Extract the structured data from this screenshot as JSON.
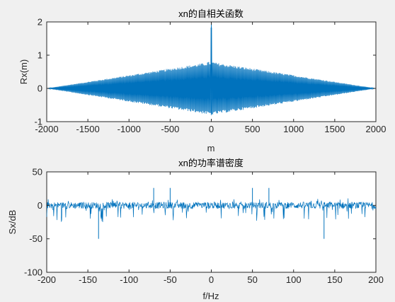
{
  "colors": {
    "figure_bg": "#f0f0f0",
    "axes_bg": "#ffffff",
    "axis_color": "#262626",
    "line": "#0072bd"
  },
  "chart_data": [
    {
      "type": "line",
      "title": "xn的自相关函数",
      "xlabel": "m",
      "ylabel": "Rx(m)",
      "xlim": [
        -2000,
        2000
      ],
      "ylim": [
        -1,
        2
      ],
      "xticks": [
        -2000,
        -1500,
        -1000,
        -500,
        0,
        500,
        1000,
        1500,
        2000
      ],
      "yticks": [
        -1,
        0,
        1,
        2
      ],
      "grid": false,
      "series": [
        {
          "description": "oscillating autocorrelation with triangular envelope",
          "x": [
            -2000,
            -1500,
            -1000,
            -500,
            -50,
            0,
            50,
            500,
            1000,
            1500,
            2000
          ],
          "envelope_upper": [
            0.0,
            0.2,
            0.4,
            0.6,
            0.78,
            2.0,
            0.78,
            0.6,
            0.4,
            0.2,
            0.0
          ],
          "envelope_lower": [
            0.0,
            -0.2,
            -0.4,
            -0.6,
            -0.78,
            -0.8,
            -0.78,
            -0.6,
            -0.4,
            -0.2,
            0.0
          ]
        }
      ]
    },
    {
      "type": "line",
      "title": "xn的功率谱密度",
      "xlabel": "f/Hz",
      "ylabel": "Sx/dB",
      "xlim": [
        -200,
        200
      ],
      "ylim": [
        -100,
        50
      ],
      "xticks": [
        -200,
        -150,
        -100,
        -50,
        0,
        50,
        100,
        150,
        200
      ],
      "yticks": [
        -100,
        -50,
        0,
        50
      ],
      "grid": false,
      "series": [
        {
          "description": "noise floor around 0 dB with spectral peaks",
          "baseline_db": 0,
          "peaks": [
            {
              "x": -70,
              "y": 26
            },
            {
              "x": -50,
              "y": 26
            },
            {
              "x": 50,
              "y": 26
            },
            {
              "x": 70,
              "y": 26
            }
          ],
          "dips": [
            {
              "x": -137,
              "y": -50
            },
            {
              "x": 137,
              "y": -50
            }
          ]
        }
      ]
    }
  ]
}
